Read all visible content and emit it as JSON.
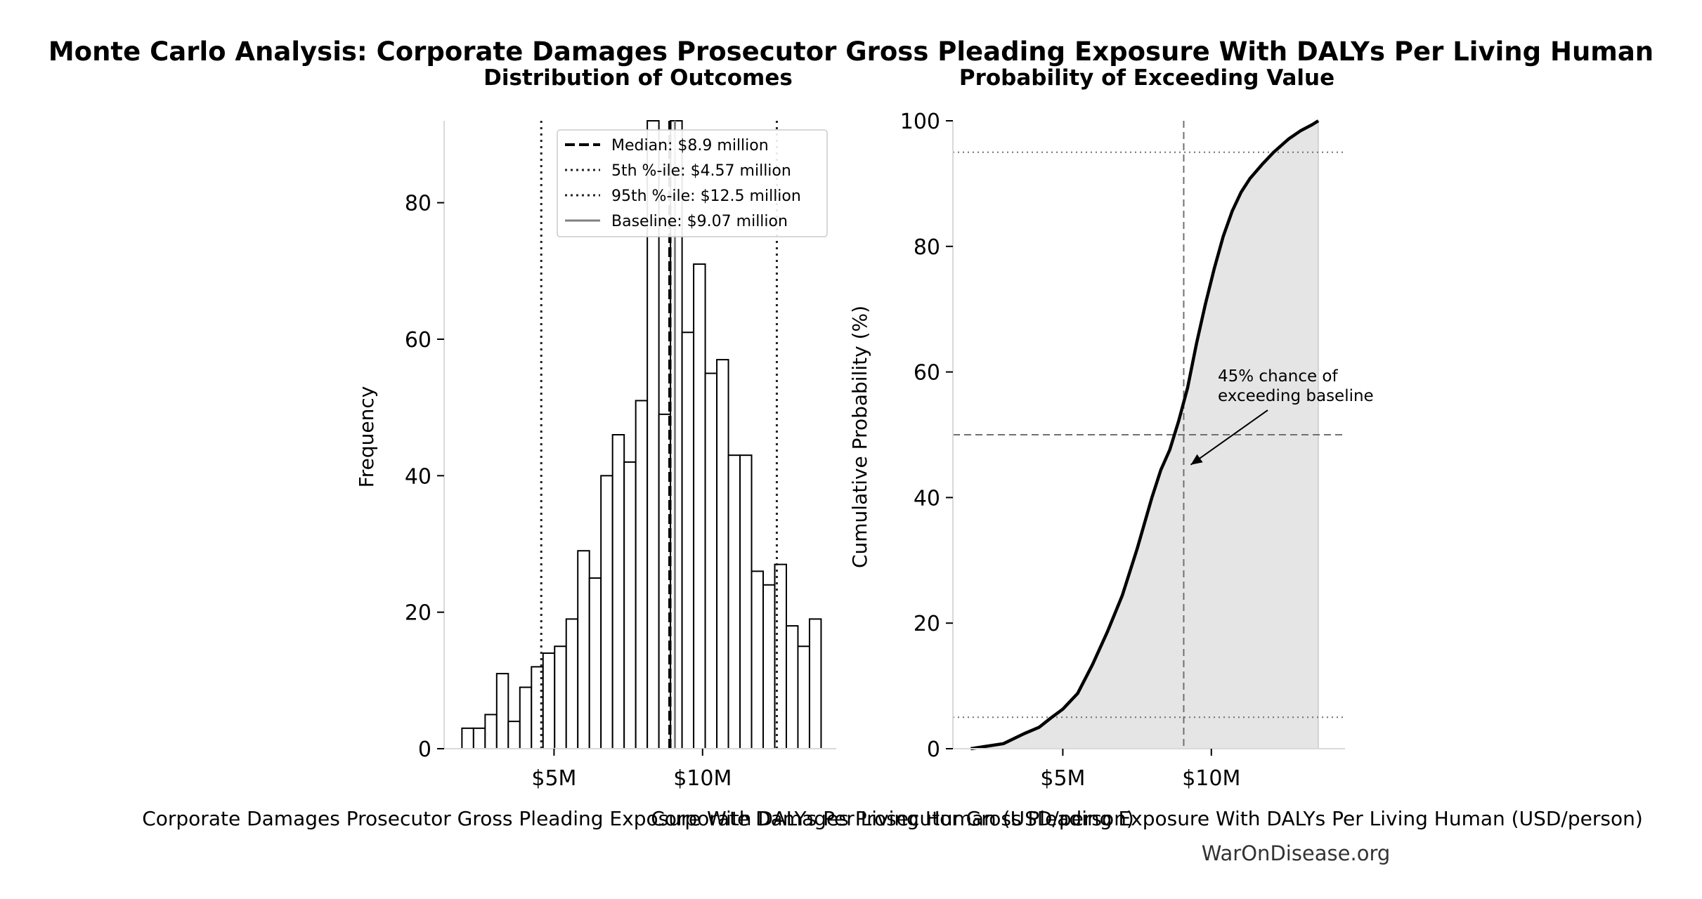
{
  "figure": {
    "title": "Monte Carlo Analysis: Corporate Damages Prosecutor Gross Pleading Exposure With DALYs Per Living Human",
    "footer": "WarOnDisease.org"
  },
  "chart_data": [
    {
      "type": "bar",
      "subtitle": "Distribution of Outcomes",
      "xlabel": "Corporate Damages Prosecutor Gross Pleading Exposure With DALYs Per Living Human (USD/person)",
      "ylabel": "Frequency",
      "xlim": [
        1.3,
        14.5
      ],
      "ylim": [
        0,
        92
      ],
      "x_unit": "million USD per person",
      "xticks": [
        5,
        10
      ],
      "xtick_labels": [
        "$5M",
        "$10M"
      ],
      "yticks": [
        0,
        20,
        40,
        60,
        80
      ],
      "bin_width": 0.39,
      "bin_starts": [
        1.9,
        2.29,
        2.68,
        3.07,
        3.46,
        3.85,
        4.24,
        4.63,
        5.02,
        5.41,
        5.8,
        6.19,
        6.58,
        6.97,
        7.36,
        7.75,
        8.14,
        8.53,
        8.92,
        9.31,
        9.7,
        10.09,
        10.48,
        10.87,
        11.26,
        11.65,
        12.04,
        12.43,
        12.82,
        13.21,
        13.6
      ],
      "values": [
        3,
        3,
        5,
        11,
        4,
        9,
        12,
        14,
        15,
        19,
        29,
        25,
        40,
        46,
        42,
        51,
        92,
        49,
        92,
        61,
        71,
        55,
        57,
        43,
        43,
        26,
        24,
        27,
        18,
        15,
        19
      ],
      "reference_lines": [
        {
          "label": "Median: $8.9 million",
          "value": 8.9,
          "style": "dashed"
        },
        {
          "label": "5th %-ile: $4.57 million",
          "value": 4.57,
          "style": "dotted"
        },
        {
          "label": "95th %-ile: $12.5 million",
          "value": 12.5,
          "style": "dotted"
        },
        {
          "label": "Baseline: $9.07 million",
          "value": 9.07,
          "style": "solid"
        }
      ],
      "legend_position": "top-right",
      "grid": false
    },
    {
      "type": "area",
      "subtitle": "Probability of Exceeding Value",
      "xlabel": "Corporate Damages Prosecutor Gross Pleading Exposure With DALYs Per Living Human (USD/person)",
      "ylabel": "Cumulative Probability (%)",
      "xlim": [
        1.3,
        14.5
      ],
      "ylim": [
        0,
        100
      ],
      "x_unit": "million USD per person",
      "xticks": [
        5,
        10
      ],
      "xtick_labels": [
        "$5M",
        "$10M"
      ],
      "yticks": [
        0,
        20,
        40,
        60,
        80,
        100
      ],
      "x": [
        1.9,
        3.0,
        3.7,
        4.2,
        4.6,
        5.0,
        5.5,
        6.0,
        6.5,
        7.0,
        7.5,
        8.0,
        8.3,
        8.6,
        8.9,
        9.2,
        9.5,
        9.8,
        10.1,
        10.4,
        10.7,
        11.0,
        11.3,
        11.7,
        12.1,
        12.6,
        13.0,
        13.4,
        13.6
      ],
      "y": [
        0,
        0.8,
        2.4,
        3.4,
        4.9,
        6.3,
        8.8,
        13.4,
        18.6,
        24.4,
        31.8,
        40.0,
        44.4,
        47.6,
        52.2,
        57.5,
        64.5,
        70.8,
        76.5,
        81.6,
        85.6,
        88.6,
        90.8,
        93.0,
        95.0,
        97.1,
        98.4,
        99.4,
        100
      ],
      "hlines": [
        5,
        50,
        95
      ],
      "vline": 9.07,
      "annotation": {
        "lines": [
          "45% chance of",
          "exceeding baseline"
        ],
        "point": [
          9.07,
          45
        ]
      },
      "grid": false
    }
  ]
}
